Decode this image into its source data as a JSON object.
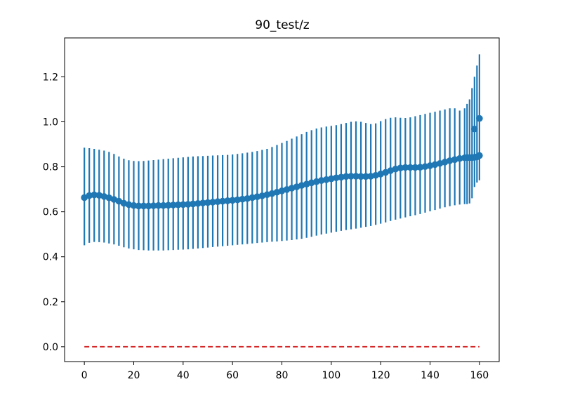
{
  "chart_data": {
    "type": "errorbar",
    "title": "90_test/z",
    "xlabel": "",
    "ylabel": "",
    "xlim": [
      -8,
      168
    ],
    "ylim": [
      -0.066,
      1.373
    ],
    "xticks": [
      0,
      20,
      40,
      60,
      80,
      100,
      120,
      140,
      160
    ],
    "yticks": [
      0.0,
      0.2,
      0.4,
      0.6,
      0.8,
      1.0,
      1.2
    ],
    "xtick_labels": [
      "0",
      "20",
      "40",
      "60",
      "80",
      "100",
      "120",
      "140",
      "160"
    ],
    "ytick_labels": [
      "0.0",
      "0.2",
      "0.4",
      "0.6",
      "0.8",
      "1.0",
      "1.2"
    ],
    "grid": false,
    "x": [
      0,
      2,
      4,
      6,
      8,
      10,
      12,
      14,
      16,
      18,
      20,
      22,
      24,
      26,
      28,
      30,
      32,
      34,
      36,
      38,
      40,
      42,
      44,
      46,
      48,
      50,
      52,
      54,
      56,
      58,
      60,
      62,
      64,
      66,
      68,
      70,
      72,
      74,
      76,
      78,
      80,
      82,
      84,
      86,
      88,
      90,
      92,
      94,
      96,
      98,
      100,
      102,
      104,
      106,
      108,
      110,
      112,
      114,
      116,
      118,
      120,
      122,
      124,
      126,
      128,
      130,
      132,
      134,
      136,
      138,
      140,
      142,
      144,
      146,
      148,
      150,
      152,
      154,
      155,
      156,
      157,
      158,
      159,
      160
    ],
    "series": [
      {
        "color": "#1f77b4",
        "mean": [
          0.663,
          0.672,
          0.675,
          0.673,
          0.668,
          0.662,
          0.655,
          0.647,
          0.638,
          0.632,
          0.628,
          0.626,
          0.626,
          0.626,
          0.627,
          0.628,
          0.628,
          0.629,
          0.63,
          0.631,
          0.632,
          0.633,
          0.635,
          0.637,
          0.639,
          0.641,
          0.643,
          0.645,
          0.647,
          0.649,
          0.651,
          0.653,
          0.656,
          0.659,
          0.663,
          0.667,
          0.671,
          0.676,
          0.681,
          0.687,
          0.693,
          0.699,
          0.705,
          0.711,
          0.717,
          0.723,
          0.729,
          0.734,
          0.739,
          0.743,
          0.747,
          0.751,
          0.754,
          0.757,
          0.758,
          0.758,
          0.757,
          0.757,
          0.758,
          0.762,
          0.768,
          0.775,
          0.783,
          0.79,
          0.795,
          0.797,
          0.797,
          0.797,
          0.798,
          0.801,
          0.805,
          0.81,
          0.815,
          0.821,
          0.827,
          0.832,
          0.837,
          0.84,
          0.841,
          0.841,
          0.841,
          0.842,
          0.844,
          0.85
        ],
        "lower": [
          0.451,
          0.462,
          0.466,
          0.465,
          0.463,
          0.459,
          0.455,
          0.449,
          0.442,
          0.437,
          0.433,
          0.43,
          0.429,
          0.428,
          0.428,
          0.428,
          0.428,
          0.429,
          0.43,
          0.431,
          0.432,
          0.433,
          0.435,
          0.437,
          0.439,
          0.441,
          0.443,
          0.445,
          0.447,
          0.449,
          0.451,
          0.453,
          0.455,
          0.457,
          0.459,
          0.461,
          0.463,
          0.465,
          0.467,
          0.468,
          0.47,
          0.472,
          0.474,
          0.477,
          0.48,
          0.484,
          0.489,
          0.494,
          0.499,
          0.503,
          0.507,
          0.511,
          0.515,
          0.519,
          0.522,
          0.525,
          0.529,
          0.533,
          0.537,
          0.542,
          0.547,
          0.553,
          0.559,
          0.565,
          0.57,
          0.575,
          0.58,
          0.585,
          0.59,
          0.596,
          0.602,
          0.608,
          0.614,
          0.62,
          0.625,
          0.629,
          0.632,
          0.634,
          0.634,
          0.637,
          0.66,
          0.71,
          0.73,
          0.74
        ],
        "upper": [
          0.885,
          0.883,
          0.88,
          0.876,
          0.872,
          0.866,
          0.857,
          0.846,
          0.836,
          0.829,
          0.826,
          0.825,
          0.826,
          0.828,
          0.83,
          0.832,
          0.834,
          0.836,
          0.838,
          0.84,
          0.842,
          0.844,
          0.846,
          0.847,
          0.848,
          0.849,
          0.85,
          0.851,
          0.852,
          0.853,
          0.855,
          0.857,
          0.86,
          0.863,
          0.866,
          0.87,
          0.875,
          0.88,
          0.888,
          0.897,
          0.906,
          0.915,
          0.925,
          0.935,
          0.945,
          0.955,
          0.963,
          0.97,
          0.975,
          0.979,
          0.982,
          0.985,
          0.99,
          0.995,
          1.0,
          1.002,
          1.0,
          0.995,
          0.99,
          0.993,
          1.003,
          1.012,
          1.018,
          1.02,
          1.018,
          1.017,
          1.02,
          1.025,
          1.03,
          1.035,
          1.04,
          1.045,
          1.05,
          1.055,
          1.06,
          1.06,
          1.05,
          1.06,
          1.08,
          1.1,
          1.15,
          1.2,
          1.25,
          1.3
        ]
      }
    ],
    "endpoint_markers": [
      {
        "x": 158,
        "y": 0.968
      },
      {
        "x": 160,
        "y": 1.015
      }
    ],
    "reference_line": {
      "y": 0.0,
      "x_start": 0,
      "x_end": 160,
      "color": "#d62728",
      "style": "dashed"
    }
  }
}
